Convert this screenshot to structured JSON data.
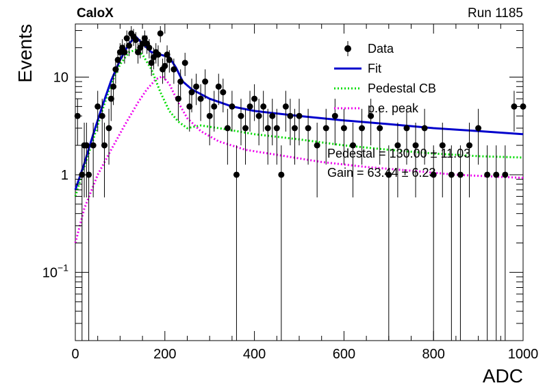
{
  "header": {
    "left_label": "CaloX",
    "right_label": "Run 1185"
  },
  "chart_data": {
    "type": "scatter",
    "title": "",
    "xlabel": "ADC",
    "ylabel": "Events",
    "xlim": [
      0,
      1000
    ],
    "ylim": [
      0.02,
      35
    ],
    "y_scale": "log",
    "grid": false,
    "legend_position": "top-right",
    "x_ticks": [
      {
        "value": 0,
        "label": "0"
      },
      {
        "value": 200,
        "label": "200"
      },
      {
        "value": 400,
        "label": "400"
      },
      {
        "value": 600,
        "label": "600"
      },
      {
        "value": 800,
        "label": "800"
      },
      {
        "value": 1000,
        "label": "1000"
      }
    ],
    "y_ticks": [
      {
        "value": 0.1,
        "base": "10",
        "exp": "−1"
      },
      {
        "value": 1,
        "base": "1",
        "exp": ""
      },
      {
        "value": 10,
        "base": "10",
        "exp": ""
      }
    ],
    "colors": {
      "data": "#000000",
      "fit": "#0000cc",
      "pedestal": "#00dd00",
      "pe_peak": "#ee00ee"
    },
    "legend": [
      {
        "label": "Data",
        "style": "marker"
      },
      {
        "label": "Fit",
        "style": "line-solid",
        "color": "#0000cc"
      },
      {
        "label": "Pedestal CB",
        "style": "line-dotted",
        "color": "#00dd00"
      },
      {
        "label": "p.e. peak",
        "style": "line-dotted",
        "color": "#ee00ee"
      }
    ],
    "annotations": [
      "Pedestal = 130.00 ± 11.03",
      "Gain = 63.44 ± 6.23"
    ],
    "data_points": {
      "x": [
        5,
        15,
        20,
        25,
        30,
        40,
        50,
        60,
        65,
        75,
        80,
        85,
        90,
        95,
        100,
        105,
        110,
        115,
        120,
        125,
        130,
        135,
        140,
        145,
        150,
        155,
        160,
        165,
        170,
        175,
        180,
        185,
        190,
        195,
        200,
        205,
        210,
        220,
        230,
        235,
        245,
        255,
        260,
        270,
        280,
        290,
        300,
        310,
        320,
        330,
        340,
        350,
        360,
        370,
        380,
        390,
        400,
        410,
        420,
        430,
        440,
        450,
        460,
        470,
        480,
        490,
        500,
        520,
        540,
        560,
        580,
        600,
        620,
        640,
        660,
        680,
        700,
        720,
        740,
        760,
        780,
        800,
        820,
        840,
        860,
        880,
        900,
        920,
        940,
        960,
        980,
        1000
      ],
      "y": [
        4,
        1,
        2,
        2,
        1,
        2,
        5,
        4,
        2,
        3,
        6,
        8,
        12,
        15,
        18,
        20,
        18,
        25,
        21,
        28,
        26,
        24,
        18,
        20,
        22,
        25,
        22,
        20,
        14,
        16,
        18,
        17,
        28,
        12,
        13,
        17,
        15,
        12,
        6,
        9,
        14,
        5,
        7,
        8,
        6,
        9,
        4,
        5,
        8,
        7,
        3,
        5,
        1,
        4,
        3,
        5,
        6,
        4,
        5,
        3,
        4,
        3,
        1,
        5,
        4,
        3,
        4,
        3,
        2,
        3,
        4,
        3,
        2,
        3,
        4,
        3,
        1,
        2,
        3,
        2,
        3,
        1,
        2,
        1,
        1,
        2,
        3,
        1,
        1,
        1,
        5,
        5
      ]
    },
    "series": [
      {
        "name": "Fit",
        "x": [
          0,
          20,
          40,
          60,
          80,
          100,
          120,
          135,
          150,
          170,
          190,
          210,
          225,
          240,
          260,
          300,
          350,
          400,
          500,
          600,
          700,
          800,
          900,
          1000
        ],
        "y": [
          0.7,
          1.3,
          2.6,
          5.0,
          9.2,
          15.0,
          22.0,
          26.0,
          22.0,
          18.0,
          17.0,
          16.0,
          12.5,
          9.0,
          7.5,
          6.0,
          5.0,
          4.5,
          4.0,
          3.6,
          3.3,
          3.0,
          2.8,
          2.6
        ]
      },
      {
        "name": "Pedestal CB",
        "x": [
          0,
          20,
          40,
          60,
          80,
          100,
          120,
          135,
          150,
          170,
          190,
          210,
          230,
          250,
          280,
          320,
          360,
          400,
          500,
          600,
          700,
          800,
          900,
          1000
        ],
        "y": [
          0.6,
          1.2,
          2.3,
          4.5,
          8.5,
          13.5,
          18.0,
          19.0,
          17.0,
          12.0,
          7.0,
          4.5,
          3.5,
          3.0,
          3.2,
          3.0,
          2.8,
          2.6,
          2.3,
          2.0,
          1.8,
          1.65,
          1.55,
          1.5
        ]
      },
      {
        "name": "p.e. peak",
        "x": [
          0,
          20,
          50,
          80,
          110,
          140,
          160,
          180,
          195,
          210,
          230,
          250,
          280,
          320,
          380,
          450,
          550,
          650,
          750,
          850,
          950,
          1000
        ],
        "y": [
          0.2,
          0.45,
          1.0,
          1.8,
          3.2,
          5.5,
          7.5,
          9.5,
          10.2,
          8.5,
          5.5,
          3.8,
          2.8,
          2.2,
          1.8,
          1.6,
          1.35,
          1.2,
          1.1,
          1.0,
          0.95,
          0.93
        ]
      }
    ]
  }
}
